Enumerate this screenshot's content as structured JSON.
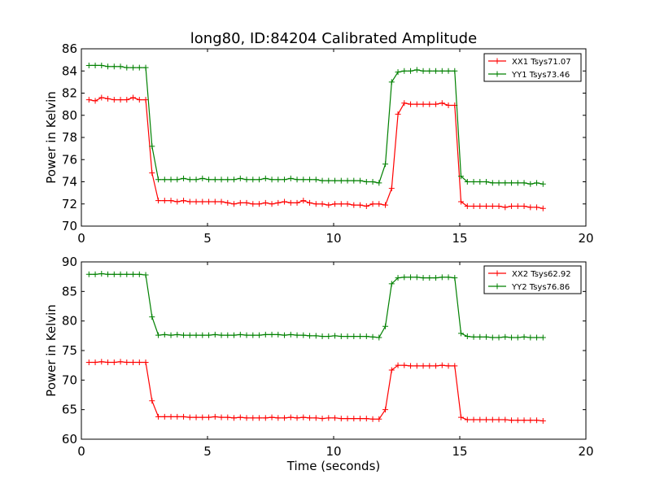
{
  "title": "long80, ID:84204 Calibrated Amplitude",
  "chart_data": [
    {
      "type": "line",
      "title": "long80, ID:84204 Calibrated Amplitude",
      "xlabel": "",
      "ylabel": "Power in Kelvin",
      "xlim": [
        0,
        20
      ],
      "ylim": [
        70,
        86
      ],
      "xticks": [
        0,
        5,
        10,
        15,
        20
      ],
      "yticks": [
        70,
        72,
        74,
        76,
        78,
        80,
        82,
        84,
        86
      ],
      "grid": false,
      "legend_position": "top-right",
      "x": [
        0.3,
        0.55,
        0.8,
        1.05,
        1.3,
        1.55,
        1.8,
        2.05,
        2.3,
        2.55,
        2.8,
        3.05,
        3.3,
        3.55,
        3.8,
        4.05,
        4.3,
        4.55,
        4.8,
        5.05,
        5.3,
        5.55,
        5.8,
        6.05,
        6.3,
        6.55,
        6.8,
        7.05,
        7.3,
        7.55,
        7.8,
        8.05,
        8.3,
        8.55,
        8.8,
        9.05,
        9.3,
        9.55,
        9.8,
        10.05,
        10.3,
        10.55,
        10.8,
        11.05,
        11.3,
        11.55,
        11.8,
        12.05,
        12.3,
        12.55,
        12.8,
        13.05,
        13.3,
        13.55,
        13.8,
        14.05,
        14.3,
        14.55,
        14.8,
        15.05,
        15.3,
        15.55,
        15.8,
        16.05,
        16.3,
        16.55,
        16.8,
        17.05,
        17.3,
        17.55,
        17.8,
        18.05,
        18.3
      ],
      "series": [
        {
          "name": "XX1 Tsys71.07",
          "color": "#ff0000",
          "values": [
            81.4,
            81.3,
            81.6,
            81.5,
            81.4,
            81.4,
            81.4,
            81.6,
            81.4,
            81.4,
            74.8,
            72.3,
            72.3,
            72.3,
            72.2,
            72.3,
            72.2,
            72.2,
            72.2,
            72.2,
            72.2,
            72.2,
            72.1,
            72.0,
            72.1,
            72.1,
            72.0,
            72.0,
            72.1,
            72.0,
            72.1,
            72.2,
            72.1,
            72.1,
            72.3,
            72.1,
            72.0,
            72.0,
            71.9,
            72.0,
            72.0,
            72.0,
            71.9,
            71.9,
            71.8,
            72.0,
            72.0,
            71.9,
            73.4,
            80.1,
            81.1,
            81.0,
            81.0,
            81.0,
            81.0,
            81.0,
            81.1,
            80.9,
            80.9,
            72.2,
            71.8,
            71.8,
            71.8,
            71.8,
            71.8,
            71.8,
            71.7,
            71.8,
            71.8,
            71.8,
            71.7,
            71.7,
            71.6
          ]
        },
        {
          "name": "YY1 Tsys73.46",
          "color": "#008000",
          "values": [
            84.5,
            84.5,
            84.5,
            84.4,
            84.4,
            84.4,
            84.3,
            84.3,
            84.3,
            84.3,
            77.2,
            74.2,
            74.2,
            74.2,
            74.2,
            74.3,
            74.2,
            74.2,
            74.3,
            74.2,
            74.2,
            74.2,
            74.2,
            74.2,
            74.3,
            74.2,
            74.2,
            74.2,
            74.3,
            74.2,
            74.2,
            74.2,
            74.3,
            74.2,
            74.2,
            74.2,
            74.2,
            74.1,
            74.1,
            74.1,
            74.1,
            74.1,
            74.1,
            74.1,
            74.0,
            74.0,
            73.9,
            75.6,
            83.0,
            83.9,
            84.0,
            84.0,
            84.1,
            84.0,
            84.0,
            84.0,
            84.0,
            84.0,
            84.0,
            74.5,
            74.0,
            74.0,
            74.0,
            74.0,
            73.9,
            73.9,
            73.9,
            73.9,
            73.9,
            73.9,
            73.8,
            73.9,
            73.8
          ]
        }
      ]
    },
    {
      "type": "line",
      "title": "",
      "xlabel": "Time (seconds)",
      "ylabel": "Power in Kelvin",
      "xlim": [
        0,
        20
      ],
      "ylim": [
        60,
        90
      ],
      "xticks": [
        0,
        5,
        10,
        15,
        20
      ],
      "yticks": [
        60,
        65,
        70,
        75,
        80,
        85,
        90
      ],
      "grid": false,
      "legend_position": "top-right",
      "x": [
        0.3,
        0.55,
        0.8,
        1.05,
        1.3,
        1.55,
        1.8,
        2.05,
        2.3,
        2.55,
        2.8,
        3.05,
        3.3,
        3.55,
        3.8,
        4.05,
        4.3,
        4.55,
        4.8,
        5.05,
        5.3,
        5.55,
        5.8,
        6.05,
        6.3,
        6.55,
        6.8,
        7.05,
        7.3,
        7.55,
        7.8,
        8.05,
        8.3,
        8.55,
        8.8,
        9.05,
        9.3,
        9.55,
        9.8,
        10.05,
        10.3,
        10.55,
        10.8,
        11.05,
        11.3,
        11.55,
        11.8,
        12.05,
        12.3,
        12.55,
        12.8,
        13.05,
        13.3,
        13.55,
        13.8,
        14.05,
        14.3,
        14.55,
        14.8,
        15.05,
        15.3,
        15.55,
        15.8,
        16.05,
        16.3,
        16.55,
        16.8,
        17.05,
        17.3,
        17.55,
        17.8,
        18.05,
        18.3
      ],
      "series": [
        {
          "name": "XX2 Tsys62.92",
          "color": "#ff0000",
          "values": [
            73.0,
            73.0,
            73.1,
            73.0,
            73.0,
            73.1,
            73.0,
            73.0,
            73.0,
            73.0,
            66.5,
            63.8,
            63.8,
            63.8,
            63.8,
            63.8,
            63.7,
            63.7,
            63.7,
            63.7,
            63.8,
            63.7,
            63.7,
            63.6,
            63.7,
            63.6,
            63.6,
            63.6,
            63.6,
            63.7,
            63.6,
            63.6,
            63.7,
            63.6,
            63.7,
            63.6,
            63.6,
            63.5,
            63.6,
            63.6,
            63.5,
            63.5,
            63.5,
            63.5,
            63.5,
            63.4,
            63.4,
            65.0,
            71.7,
            72.5,
            72.5,
            72.4,
            72.4,
            72.4,
            72.4,
            72.4,
            72.5,
            72.4,
            72.4,
            63.7,
            63.3,
            63.3,
            63.3,
            63.3,
            63.3,
            63.3,
            63.3,
            63.2,
            63.2,
            63.2,
            63.2,
            63.2,
            63.1
          ]
        },
        {
          "name": "YY2 Tsys76.86",
          "color": "#008000",
          "values": [
            87.9,
            87.9,
            88.0,
            87.9,
            87.9,
            87.9,
            87.9,
            87.9,
            87.9,
            87.8,
            80.7,
            77.6,
            77.7,
            77.6,
            77.7,
            77.6,
            77.6,
            77.6,
            77.6,
            77.6,
            77.7,
            77.6,
            77.6,
            77.6,
            77.7,
            77.6,
            77.6,
            77.6,
            77.7,
            77.7,
            77.7,
            77.6,
            77.7,
            77.6,
            77.6,
            77.5,
            77.5,
            77.4,
            77.4,
            77.5,
            77.4,
            77.4,
            77.4,
            77.4,
            77.4,
            77.3,
            77.2,
            79.1,
            86.3,
            87.3,
            87.4,
            87.4,
            87.4,
            87.3,
            87.3,
            87.3,
            87.4,
            87.4,
            87.3,
            77.9,
            77.4,
            77.3,
            77.3,
            77.3,
            77.2,
            77.2,
            77.3,
            77.2,
            77.2,
            77.3,
            77.2,
            77.2,
            77.2
          ]
        }
      ]
    }
  ]
}
